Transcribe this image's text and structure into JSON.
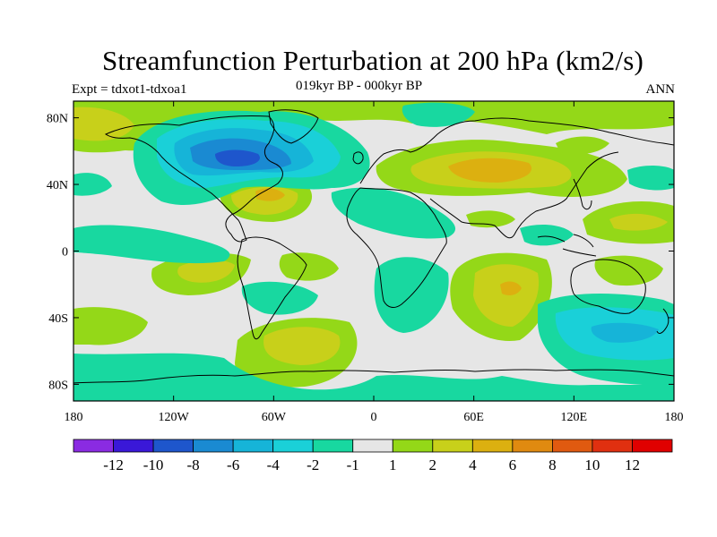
{
  "title": "Streamfunction Perturbation at 200 hPa (km2/s)",
  "subtitle": "019kyr BP - 000kyr BP",
  "experiment_label": "Expt = tdxot1-tdxoa1",
  "season_label": "ANN",
  "colors": {
    "background": "#e6e6e6",
    "coastline": "#000000",
    "frame": "#000000"
  },
  "chart_data": {
    "type": "contour_map",
    "title": "Streamfunction Perturbation at 200 hPa (km2/s)",
    "units": "km2/s",
    "projection": "cylindrical equidistant",
    "lon_range": [
      180,
      540
    ],
    "lat_range": [
      -90,
      90
    ],
    "x_ticks": [
      {
        "value": 180,
        "label": "180"
      },
      {
        "value": 240,
        "label": "120W"
      },
      {
        "value": 300,
        "label": "60W"
      },
      {
        "value": 360,
        "label": "0"
      },
      {
        "value": 420,
        "label": "60E"
      },
      {
        "value": 480,
        "label": "120E"
      },
      {
        "value": 540,
        "label": "180"
      }
    ],
    "y_ticks": [
      {
        "value": 80,
        "label": "80N"
      },
      {
        "value": 40,
        "label": "40N"
      },
      {
        "value": 0,
        "label": "0"
      },
      {
        "value": -40,
        "label": "40S"
      },
      {
        "value": -80,
        "label": "80S"
      }
    ],
    "colorbar": {
      "boundary_labels": [
        "-12",
        "-10",
        "-8",
        "-6",
        "-4",
        "-2",
        "-1",
        "1",
        "2",
        "4",
        "6",
        "8",
        "10",
        "12"
      ],
      "colors": [
        "#8a2be2",
        "#3a18d8",
        "#1e56cc",
        "#1a8ad2",
        "#16b4d8",
        "#1ad0d8",
        "#18d8a0",
        "#e6e6e6",
        "#94d818",
        "#c8d01a",
        "#dcb010",
        "#e08a10",
        "#e05a10",
        "#e03010",
        "#e00000"
      ]
    },
    "anomalies": [
      {
        "name": "North America / Greenland low",
        "lon": 277,
        "lat": 50,
        "value": -9
      },
      {
        "name": "Central Asia high",
        "lon": 440,
        "lat": 50,
        "value": 6
      },
      {
        "name": "Caribbean high",
        "lon": 288,
        "lat": 30,
        "value": 5
      },
      {
        "name": "Indian Ocean high",
        "lon": 440,
        "lat": -20,
        "value": 5
      },
      {
        "name": "South Atlantic high",
        "lon": 318,
        "lat": -55,
        "value": 4
      },
      {
        "name": "South Pacific high",
        "lon": 235,
        "lat": -20,
        "value": 3
      },
      {
        "name": "South Indian Ocean low",
        "lon": 495,
        "lat": -45,
        "value": -3
      }
    ]
  }
}
